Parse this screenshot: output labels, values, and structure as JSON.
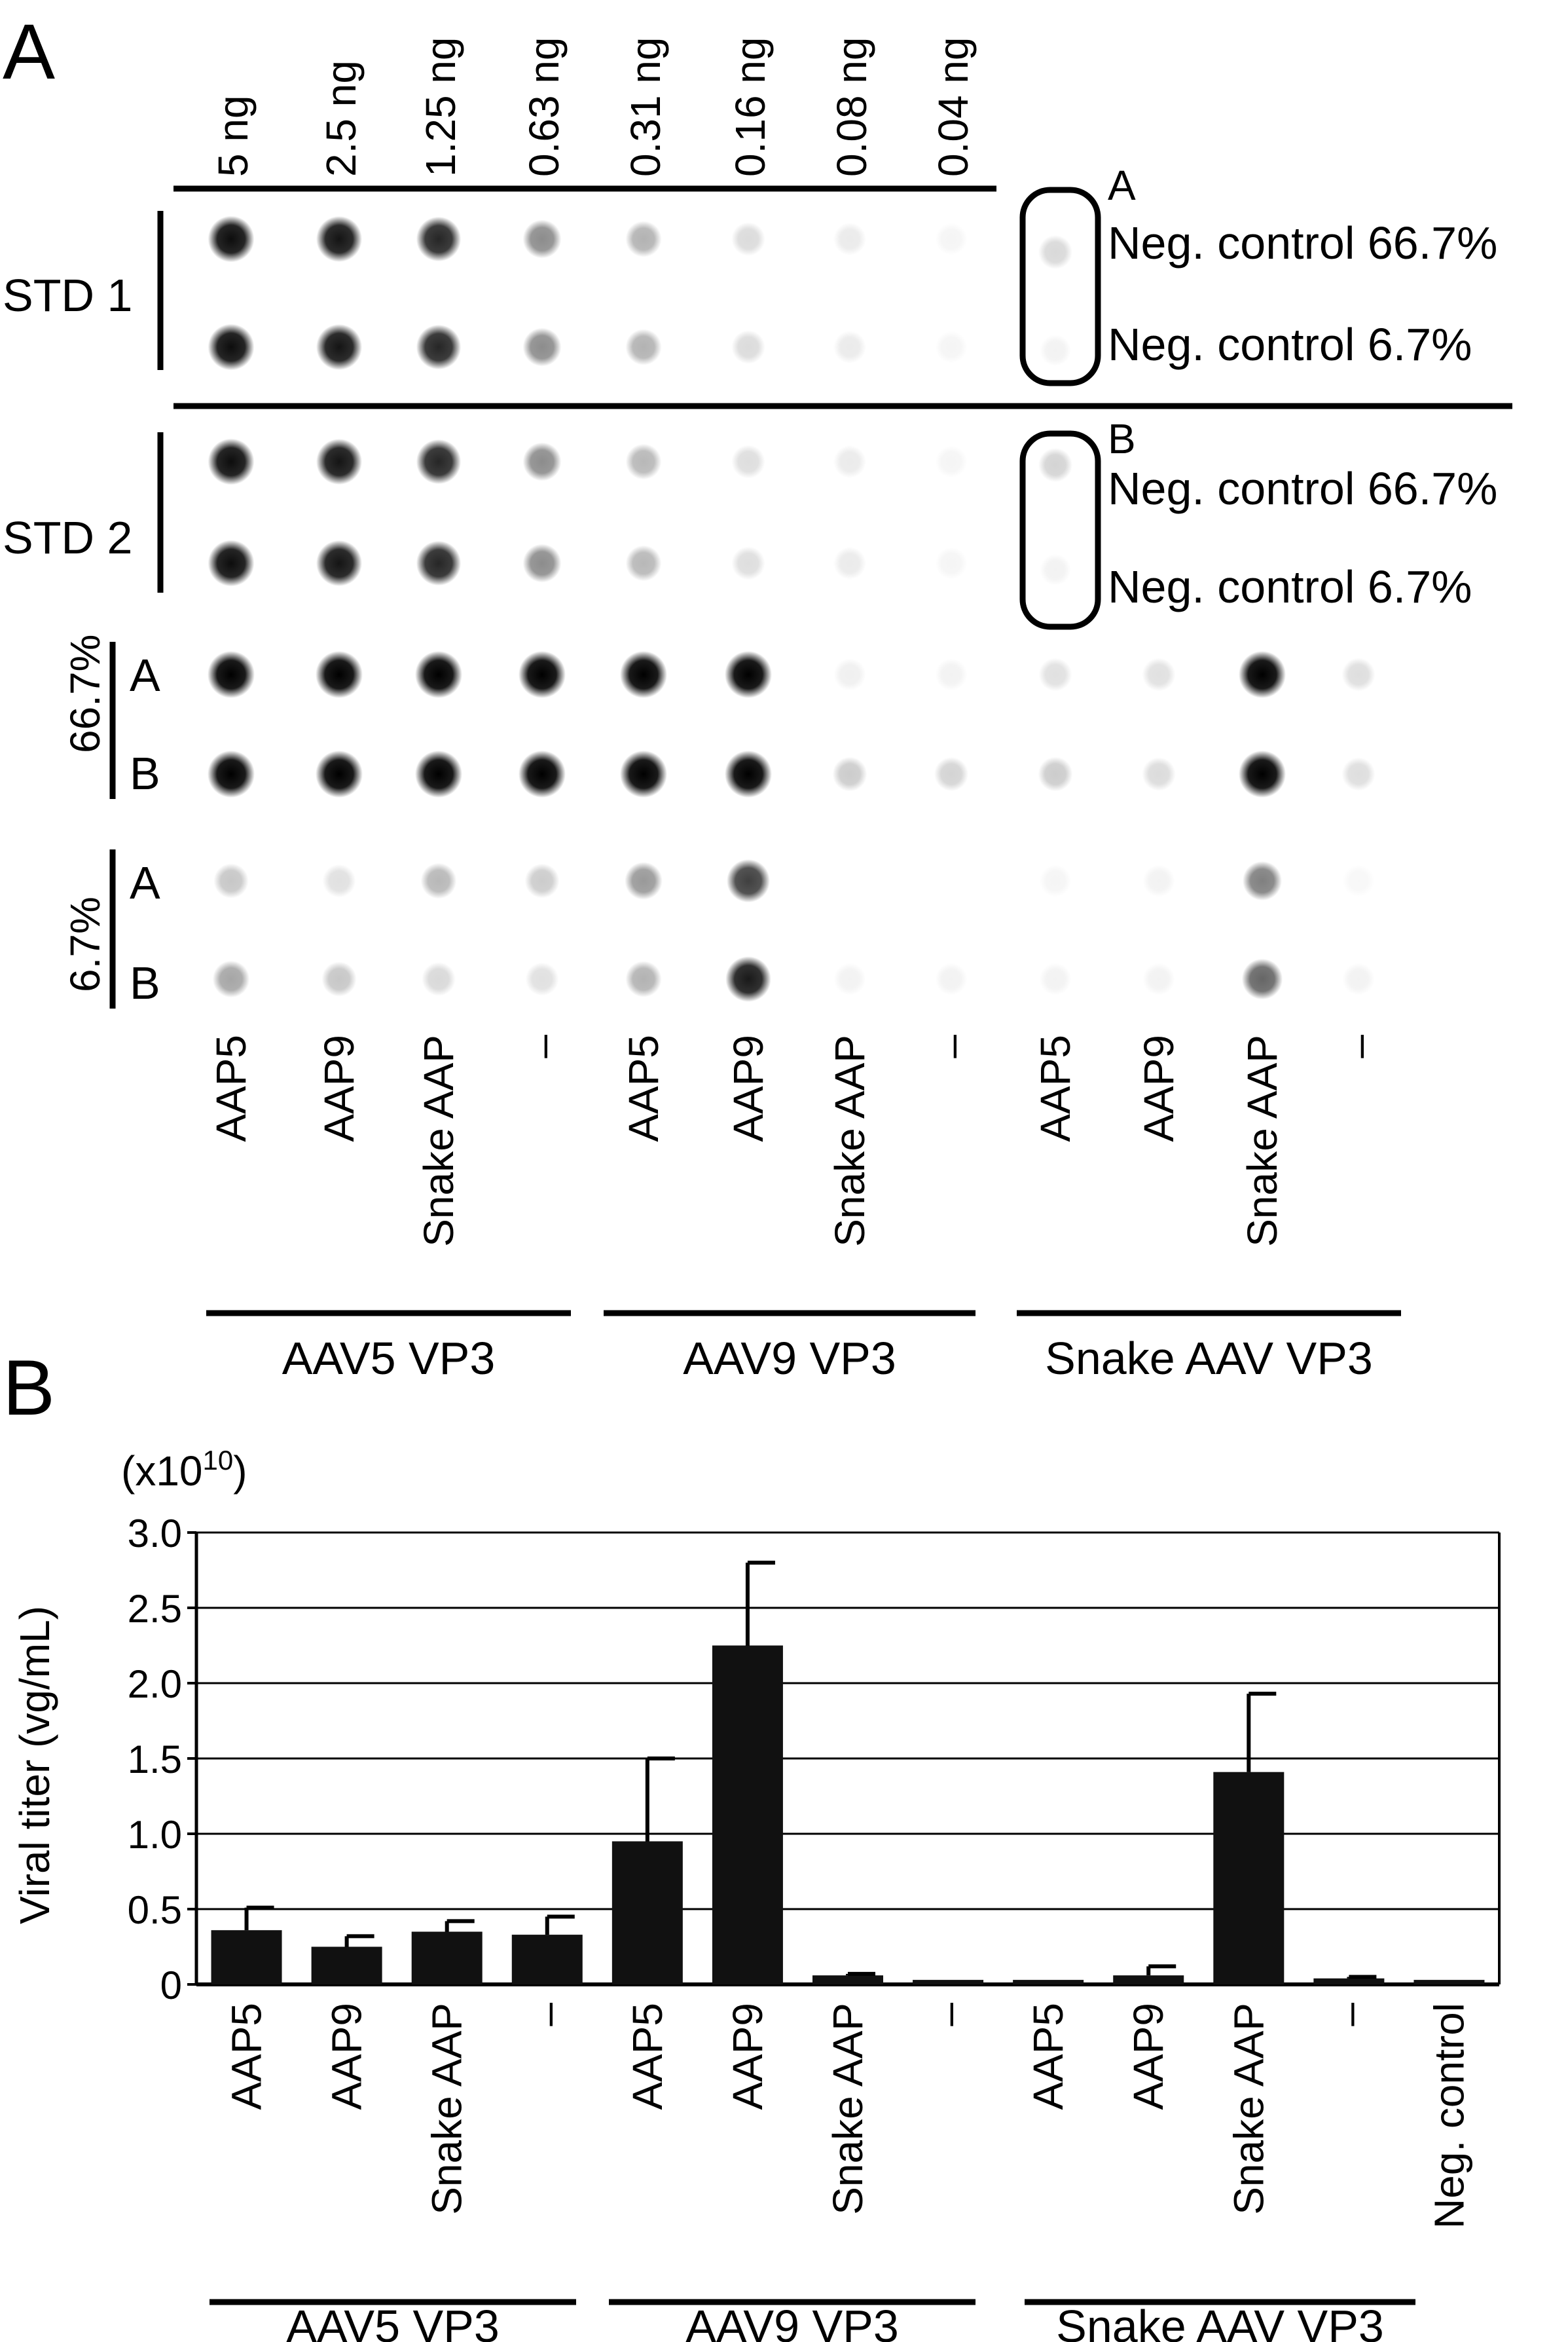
{
  "panel_labels": {
    "a": "A",
    "b": "B"
  },
  "panel_a": {
    "std_amounts": [
      "5 ng",
      "2.5 ng",
      "1.25 ng",
      "0.63 ng",
      "0.31 ng",
      "0.16 ng",
      "0.08 ng",
      "0.04 ng"
    ],
    "std1_label": "STD 1",
    "std2_label": "STD 2",
    "box1_letter": "A",
    "box2_letter": "B",
    "neg_high": "Neg. control 66.7%",
    "neg_low": "Neg. control 6.7%",
    "dil_high": "66.7%",
    "dil_low": "6.7%",
    "rep_a": "A",
    "rep_b": "B",
    "columns": [
      "AAP5",
      "AAP9",
      "Snake AAP",
      "–",
      "AAP5",
      "AAP9",
      "Snake AAP",
      "–",
      "AAP5",
      "AAP9",
      "Snake AAP",
      "–"
    ],
    "groups": [
      "AAV5 VP3",
      "AAV9 VP3",
      "Snake AAV VP3"
    ],
    "dot_intensity": {
      "std1": [
        0.95,
        0.92,
        0.85,
        0.45,
        0.3,
        0.14,
        0.08,
        0.04
      ],
      "std2": [
        0.95,
        0.92,
        0.85,
        0.45,
        0.28,
        0.13,
        0.08,
        0.04
      ],
      "std1_neg": [
        0.15,
        0.05
      ],
      "std2_neg": [
        0.17,
        0.05
      ],
      "high_a": [
        1,
        1,
        1,
        1,
        1,
        1,
        0.06,
        0.05,
        0.12,
        0.12,
        1,
        0.13
      ],
      "high_b": [
        1,
        1,
        1,
        1,
        1,
        1,
        0.2,
        0.17,
        0.2,
        0.14,
        1,
        0.13
      ],
      "low_a": [
        0.22,
        0.12,
        0.28,
        0.2,
        0.4,
        0.75,
        0,
        0,
        0.04,
        0.05,
        0.5,
        0.03
      ],
      "low_b": [
        0.35,
        0.22,
        0.15,
        0.12,
        0.3,
        0.9,
        0.05,
        0.05,
        0.05,
        0.05,
        0.6,
        0.05
      ]
    }
  },
  "chart_data": {
    "type": "bar",
    "ylabel": "Viral titer (vg/mL)",
    "yscale_base": "(x10",
    "yscale_exp": "10",
    "yscale_close": ")",
    "ylim": [
      0,
      3.0
    ],
    "yticks": [
      "0",
      "0.5",
      "1.0",
      "1.5",
      "2.0",
      "2.5",
      "3.0"
    ],
    "grid": true,
    "categories": [
      "AAP5",
      "AAP9",
      "Snake AAP",
      "–",
      "AAP5",
      "AAP9",
      "Snake AAP",
      "–",
      "AAP5",
      "AAP9",
      "Snake AAP",
      "–",
      "Neg. control"
    ],
    "groups": [
      "AAV5 VP3",
      "AAV9 VP3",
      "Snake AAV VP3"
    ],
    "values": [
      0.36,
      0.25,
      0.35,
      0.33,
      0.95,
      2.25,
      0.06,
      0.03,
      0.03,
      0.06,
      1.41,
      0.04,
      0.03
    ],
    "errors": [
      0.15,
      0.07,
      0.07,
      0.12,
      0.55,
      0.55,
      0.01,
      0.0,
      0.0,
      0.06,
      0.52,
      0.01,
      0.0
    ],
    "bar_color": "#111111"
  }
}
